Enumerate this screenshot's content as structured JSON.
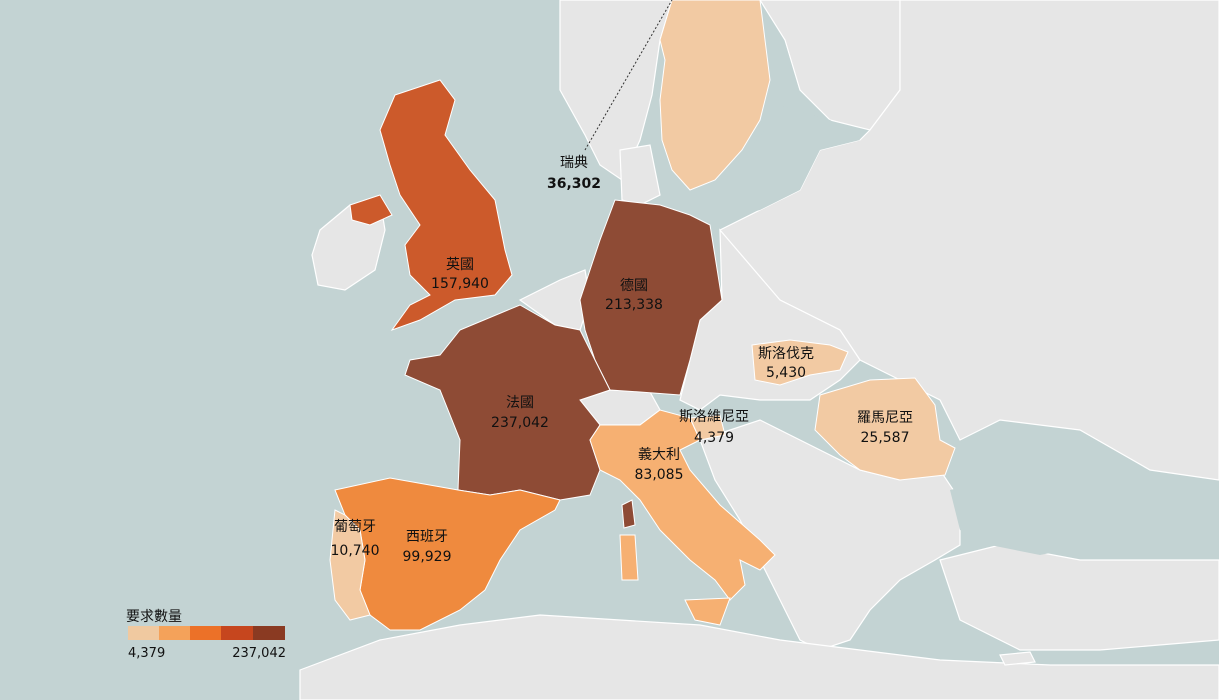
{
  "map": {
    "colors": {
      "sea": "#c3d3d3",
      "land": "#e6e6e6",
      "border": "#ffffff",
      "scale": [
        "#f0c9a0",
        "#f4a25a",
        "#ec7128",
        "#c6461e",
        "#8a3a22"
      ],
      "france": "#8e4b35",
      "germany": "#8e4b35",
      "uk": "#cc5a2b",
      "spain": "#ef8a3e",
      "portugal": "#f2caa3",
      "italy": "#f6b072",
      "sweden": "#f2caa3",
      "romania": "#f2caa3",
      "slovakia": "#f2caa3",
      "slovenia": "#f2caa3"
    },
    "countries": [
      {
        "id": "uk",
        "name": "英國",
        "value": "157,940"
      },
      {
        "id": "germany",
        "name": "德國",
        "value": "213,338"
      },
      {
        "id": "france",
        "name": "法國",
        "value": "237,042"
      },
      {
        "id": "spain",
        "name": "西班牙",
        "value": "99,929"
      },
      {
        "id": "portugal",
        "name": "葡萄牙",
        "value": "10,740"
      },
      {
        "id": "italy",
        "name": "義大利",
        "value": "83,085"
      },
      {
        "id": "slovenia",
        "name": "斯洛維尼亞",
        "value": "4,379"
      },
      {
        "id": "slovakia",
        "name": "斯洛伐克",
        "value": "5,430"
      },
      {
        "id": "romania",
        "name": "羅馬尼亞",
        "value": "25,587"
      },
      {
        "id": "sweden",
        "name": "瑞典",
        "value": "36,302"
      }
    ],
    "legend": {
      "title": "要求數量",
      "min": "4,379",
      "max": "237,042"
    }
  }
}
